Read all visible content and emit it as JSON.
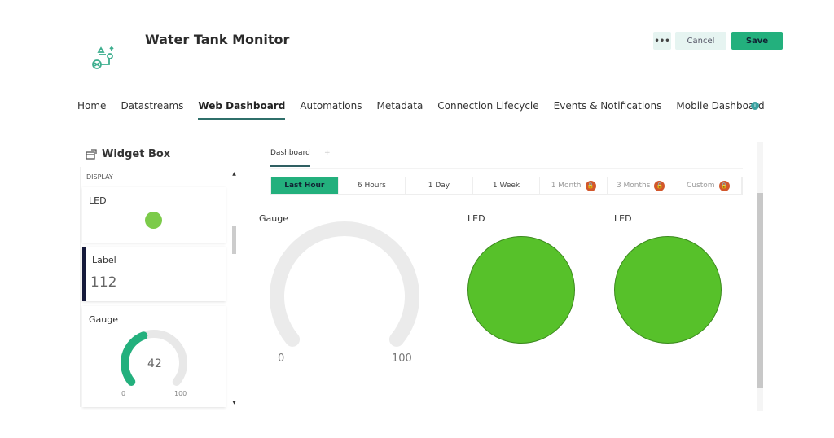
{
  "header": {
    "title": "Water Tank Monitor",
    "more_label": "•••",
    "cancel_label": "Cancel",
    "save_label": "Save"
  },
  "nav": {
    "tabs": [
      "Home",
      "Datastreams",
      "Web Dashboard",
      "Automations",
      "Metadata",
      "Connection Lifecycle",
      "Events & Notifications",
      "Mobile Dashboard"
    ],
    "active": "Web Dashboard",
    "info_icon": "i"
  },
  "widget_box": {
    "title": "Widget Box",
    "category": "DISPLAY",
    "items": [
      {
        "label": "LED"
      },
      {
        "label": "Label",
        "value": "112"
      },
      {
        "label": "Gauge",
        "value": "42",
        "min": "0",
        "max": "100",
        "fraction": 0.42
      }
    ]
  },
  "dashboard": {
    "tab": "Dashboard",
    "time_ranges": [
      {
        "label": "Last Hour",
        "active": true,
        "locked": false
      },
      {
        "label": "6 Hours",
        "active": false,
        "locked": false
      },
      {
        "label": "1 Day",
        "active": false,
        "locked": false
      },
      {
        "label": "1 Week",
        "active": false,
        "locked": false
      },
      {
        "label": "1 Month",
        "active": false,
        "locked": true
      },
      {
        "label": "3 Months",
        "active": false,
        "locked": true
      },
      {
        "label": "Custom",
        "active": false,
        "locked": true
      }
    ],
    "widgets": {
      "gauge": {
        "label": "Gauge",
        "value": "--",
        "min": "0",
        "max": "100"
      },
      "led1": {
        "label": "LED"
      },
      "led2": {
        "label": "LED"
      }
    }
  },
  "colors": {
    "accent": "#23b07d",
    "led_on": "#57c12a",
    "lock": "#d2572c"
  }
}
